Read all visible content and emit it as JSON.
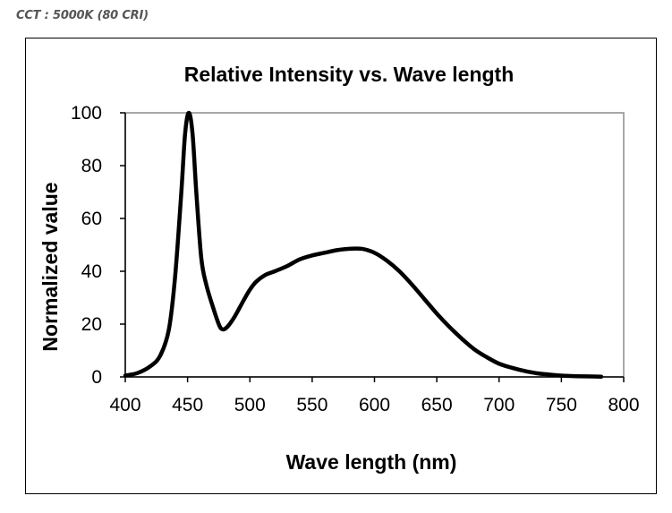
{
  "caption": "CCT : 5000K (80 CRI)",
  "chart_data": {
    "type": "line",
    "title": "Relative Intensity vs. Wave length",
    "xlabel": "Wave length (nm)",
    "ylabel": "Normalized value",
    "xlim": [
      400,
      800
    ],
    "ylim": [
      0,
      100
    ],
    "xticks": [
      400,
      450,
      500,
      550,
      600,
      650,
      700,
      750,
      800
    ],
    "yticks": [
      0,
      20,
      40,
      60,
      80,
      100
    ],
    "grid": false,
    "series": [
      {
        "name": "Relative Intensity",
        "color": "#000000",
        "x": [
          400,
          410,
          420,
          428,
          435,
          440,
          445,
          448,
          451,
          454,
          457,
          461,
          465,
          470,
          475,
          478,
          482,
          488,
          495,
          500,
          505,
          512,
          520,
          530,
          540,
          550,
          560,
          570,
          580,
          590,
          600,
          610,
          620,
          630,
          640,
          650,
          660,
          670,
          680,
          690,
          700,
          710,
          720,
          730,
          740,
          750,
          760,
          770,
          782
        ],
        "y": [
          0.5,
          1.5,
          4,
          8,
          18,
          38,
          70,
          92,
          100,
          92,
          70,
          45,
          35,
          27,
          20,
          18,
          19,
          23,
          29,
          33,
          36,
          38.5,
          40,
          42,
          44.5,
          46,
          47,
          48,
          48.5,
          48.5,
          47,
          44,
          40,
          35,
          29.5,
          24,
          19,
          14.5,
          10.5,
          7.5,
          5,
          3.5,
          2.3,
          1.4,
          0.9,
          0.5,
          0.3,
          0.2,
          0.1
        ]
      }
    ]
  }
}
